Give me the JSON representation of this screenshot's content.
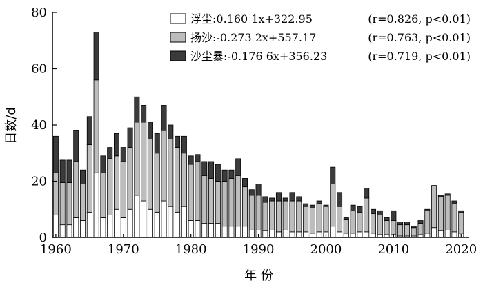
{
  "chart_data": {
    "type": "bar",
    "stacked": true,
    "xlabel": "年 份",
    "ylabel": "日数/d",
    "ylim": [
      0,
      80
    ],
    "yticks": [
      0,
      20,
      40,
      60,
      80
    ],
    "xticks": [
      1960,
      1970,
      1980,
      1990,
      2000,
      2010,
      2020
    ],
    "grid": false,
    "legend_position": "top-right",
    "colors": {
      "fuchen": "#ffffff",
      "yangsha": "#bdbdbd",
      "shachenbao": "#3b3b3b",
      "axis": "#000000"
    },
    "x": [
      1960,
      1961,
      1962,
      1963,
      1964,
      1965,
      1966,
      1967,
      1968,
      1969,
      1970,
      1971,
      1972,
      1973,
      1974,
      1975,
      1976,
      1977,
      1978,
      1979,
      1980,
      1981,
      1982,
      1983,
      1984,
      1985,
      1986,
      1987,
      1988,
      1989,
      1990,
      1991,
      1992,
      1993,
      1994,
      1995,
      1996,
      1997,
      1998,
      1999,
      2000,
      2001,
      2002,
      2003,
      2004,
      2005,
      2006,
      2007,
      2008,
      2009,
      2010,
      2011,
      2012,
      2013,
      2014,
      2015,
      2016,
      2017,
      2018,
      2019,
      2020
    ],
    "series": [
      {
        "name": "浮尘",
        "equation": ":0.160 1x+322.95",
        "stats": "(r=0.826, p<0.01)",
        "values": [
          8,
          4.5,
          4.5,
          7,
          6,
          9,
          23,
          7,
          8,
          10,
          7,
          10,
          15,
          13,
          10,
          9,
          13,
          11,
          9,
          11,
          6,
          6,
          5,
          5,
          5,
          4,
          4,
          4,
          4,
          3,
          3,
          2.5,
          3,
          2,
          3,
          2,
          2,
          2,
          1.5,
          2,
          2,
          4,
          2,
          1.5,
          1.5,
          2,
          2,
          1.5,
          1,
          1,
          1,
          0.5,
          0.5,
          0.5,
          1,
          1.5,
          3.5,
          2.5,
          3,
          2,
          1.5
        ]
      },
      {
        "name": "扬沙",
        "equation": ":-0.273 2x+557.17",
        "stats": "(r=0.763, p<0.01)",
        "values": [
          15,
          15,
          15,
          20,
          13,
          24,
          33,
          16,
          20,
          19,
          20,
          22,
          26,
          28,
          25,
          21,
          25,
          24,
          23,
          19,
          20,
          21,
          17,
          16,
          15,
          16,
          17,
          18,
          14,
          12,
          12,
          10,
          10,
          11,
          10,
          11,
          11,
          9,
          9,
          10,
          9,
          15,
          9,
          5,
          8,
          7,
          12,
          7,
          7,
          5,
          5,
          4,
          4,
          3,
          4,
          8,
          15,
          12,
          12,
          10,
          7.5
        ]
      },
      {
        "name": "沙尘暴",
        "equation": ":-0.176 6x+356.23",
        "stats": "(r=0.719, p<0.01)",
        "values": [
          13,
          8,
          8,
          11,
          5,
          10,
          17,
          6,
          4,
          8,
          5,
          7,
          9,
          6,
          6,
          7,
          9,
          5,
          4,
          6,
          3,
          2.5,
          5,
          6,
          6,
          4,
          3,
          6,
          3,
          2,
          4,
          2,
          1,
          3,
          1,
          3,
          1.5,
          1,
          1,
          1,
          0.5,
          6,
          5,
          0.5,
          2,
          2,
          3.5,
          1.5,
          1.5,
          1,
          3.5,
          1,
          1,
          0.5,
          1,
          0.5,
          0,
          0.5,
          0.5,
          1,
          0.5
        ]
      }
    ]
  }
}
